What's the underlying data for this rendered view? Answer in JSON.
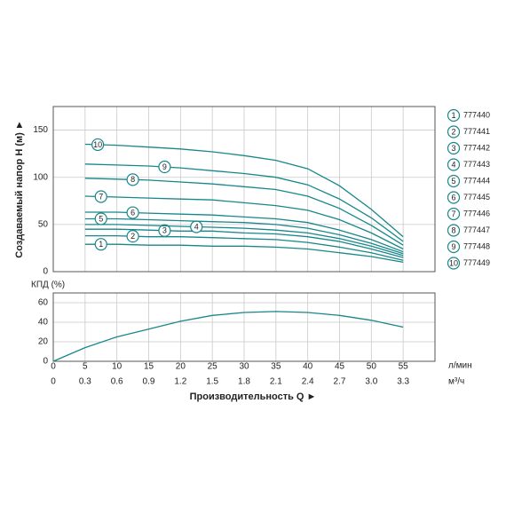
{
  "chart_data": [
    {
      "type": "line",
      "y_label": "Создаваемый напор Н (м) ►",
      "x": [
        5,
        10,
        15,
        20,
        25,
        30,
        35,
        40,
        45,
        50,
        55
      ],
      "xlim": [
        0,
        60
      ],
      "xticks": [
        0,
        5,
        10,
        15,
        20,
        25,
        30,
        35,
        40,
        45,
        50,
        55
      ],
      "ylim": [
        0,
        175
      ],
      "yticks": [
        0,
        50,
        100,
        150
      ],
      "grid": true,
      "series": [
        {
          "name": "777440",
          "marker": "1",
          "color": "#17878a",
          "values": [
            29,
            29,
            28,
            28,
            27,
            27,
            26,
            24,
            20,
            16,
            10
          ]
        },
        {
          "name": "777441",
          "marker": "2",
          "color": "#17878a",
          "values": [
            38,
            38,
            37,
            37,
            36,
            35,
            34,
            31,
            26,
            20,
            12
          ]
        },
        {
          "name": "777442",
          "marker": "3",
          "color": "#17878a",
          "values": [
            45,
            45,
            44,
            43,
            43,
            41,
            40,
            37,
            32,
            24,
            15
          ]
        },
        {
          "name": "777443",
          "marker": "4",
          "color": "#17878a",
          "values": [
            50,
            50,
            49,
            48,
            47,
            46,
            44,
            41,
            35,
            27,
            17
          ]
        },
        {
          "name": "777444",
          "marker": "5",
          "color": "#17878a",
          "values": [
            56,
            56,
            55,
            54,
            53,
            52,
            50,
            46,
            39,
            30,
            19
          ]
        },
        {
          "name": "777445",
          "marker": "6",
          "color": "#17878a",
          "values": [
            63,
            63,
            62,
            61,
            60,
            58,
            56,
            52,
            44,
            34,
            21
          ]
        },
        {
          "name": "777446",
          "marker": "7",
          "color": "#17878a",
          "values": [
            80,
            79,
            78,
            77,
            76,
            73,
            70,
            65,
            55,
            41,
            24
          ]
        },
        {
          "name": "777447",
          "marker": "8",
          "color": "#17878a",
          "values": [
            99,
            98,
            97,
            95,
            93,
            90,
            87,
            80,
            67,
            49,
            28
          ]
        },
        {
          "name": "777448",
          "marker": "9",
          "color": "#17878a",
          "values": [
            114,
            113,
            112,
            110,
            107,
            104,
            100,
            92,
            77,
            57,
            32
          ]
        },
        {
          "name": "777449",
          "marker": "10",
          "color": "#17878a",
          "values": [
            135,
            134,
            132,
            130,
            127,
            123,
            118,
            109,
            91,
            66,
            37
          ]
        }
      ]
    },
    {
      "type": "line",
      "y_label": "КПД (%)",
      "x_label": "Производительность Q ►",
      "x_unit": "л/мин",
      "x2_unit": "м³/ч",
      "x": [
        0,
        5,
        10,
        15,
        20,
        25,
        30,
        35,
        40,
        45,
        50,
        55
      ],
      "xlim": [
        0,
        60
      ],
      "xticks": [
        0,
        5,
        10,
        15,
        20,
        25,
        30,
        35,
        40,
        45,
        50,
        55
      ],
      "x2lim": [
        0,
        3.6
      ],
      "x2ticks": [
        0,
        0.3,
        0.6,
        0.9,
        1.2,
        1.5,
        1.8,
        2.1,
        2.4,
        2.7,
        {
          "value": 3.0,
          "label": "3.0"
        },
        3.3
      ],
      "ylim": [
        0,
        70
      ],
      "yticks": [
        0,
        20,
        40,
        60
      ],
      "grid": true,
      "series": [
        {
          "color": "#17878a",
          "values": [
            0,
            14,
            25,
            33,
            41,
            47,
            50,
            51,
            50,
            47,
            42,
            35
          ]
        }
      ]
    }
  ]
}
